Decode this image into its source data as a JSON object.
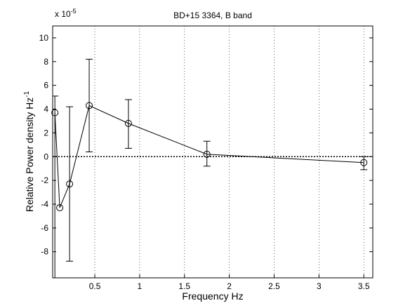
{
  "chart_data": {
    "type": "errorline",
    "title": "BD+15 3364, B band",
    "xlabel": "Frequency  Hz",
    "ylabel": "Relative Power density  Hz",
    "ylabel_exp": "-1",
    "multiplier": "x 10",
    "multiplier_exp": "-5",
    "x": [
      0.0547,
      0.109,
      0.21875,
      0.4375,
      0.875,
      1.75,
      3.5
    ],
    "series": [
      {
        "color": "#000000",
        "values": [
          3.7,
          -4.3,
          -2.3,
          4.3,
          2.8,
          0.2,
          -0.5
        ],
        "lower": [
          -10.2,
          null,
          -8.8,
          0.4,
          0.7,
          -0.8,
          -1.1
        ],
        "upper": [
          5.1,
          null,
          4.2,
          8.2,
          4.8,
          1.3,
          0.0
        ]
      }
    ],
    "xlim": [
      0.03,
      3.6
    ],
    "ylim": [
      -10.2,
      11
    ],
    "xticks": [
      0.5,
      1,
      1.5,
      2,
      2.5,
      3,
      3.5
    ],
    "yticks": [
      -8,
      -6,
      -4,
      -2,
      0,
      2,
      4,
      6,
      8,
      10
    ],
    "xgrid": true,
    "hline": 0
  }
}
